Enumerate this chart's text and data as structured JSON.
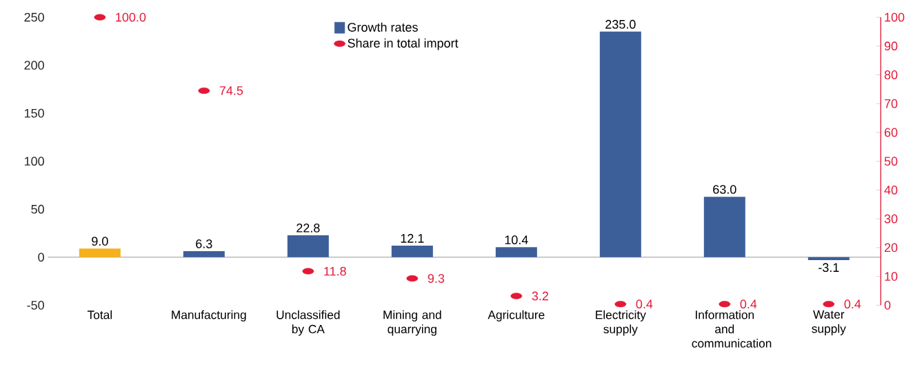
{
  "chart_data": {
    "type": "bar",
    "categories": [
      "Total",
      "Manufacturing",
      "Unclassified by CA",
      "Mining and quarrying",
      "Agriculture",
      "Electricity supply",
      "Information and communication",
      "Water supply"
    ],
    "series": [
      {
        "name": "Growth rates",
        "color": "#3d5f99",
        "colors": [
          "#f5b01b",
          "#3d5f99",
          "#3d5f99",
          "#3d5f99",
          "#3d5f99",
          "#3d5f99",
          "#3d5f99",
          "#3d5f99"
        ],
        "values": [
          9.0,
          6.3,
          22.8,
          12.1,
          10.4,
          235.0,
          63.0,
          -3.1
        ],
        "value_labels": [
          "9.0",
          "6.3",
          "22.8",
          "12.1",
          "10.4",
          "235.0",
          "63.0",
          "-3.1"
        ]
      },
      {
        "name": "Share in total import",
        "type": "scatter",
        "axis": "y2",
        "color": "#e31937",
        "values": [
          100.0,
          74.5,
          11.8,
          9.3,
          3.2,
          0.4,
          0.4,
          0.4
        ],
        "value_labels": [
          "100.0",
          "74.5",
          "11.8",
          "9.3",
          "3.2",
          "0.4",
          "0.4",
          "0.4"
        ]
      }
    ],
    "ylim": [
      -50,
      250
    ],
    "yticks": [
      -50,
      0,
      50,
      100,
      150,
      200,
      250
    ],
    "y2lim": [
      0,
      100
    ],
    "y2ticks": [
      0,
      10,
      20,
      30,
      40,
      50,
      60,
      70,
      80,
      90,
      100
    ],
    "legend": "top"
  }
}
